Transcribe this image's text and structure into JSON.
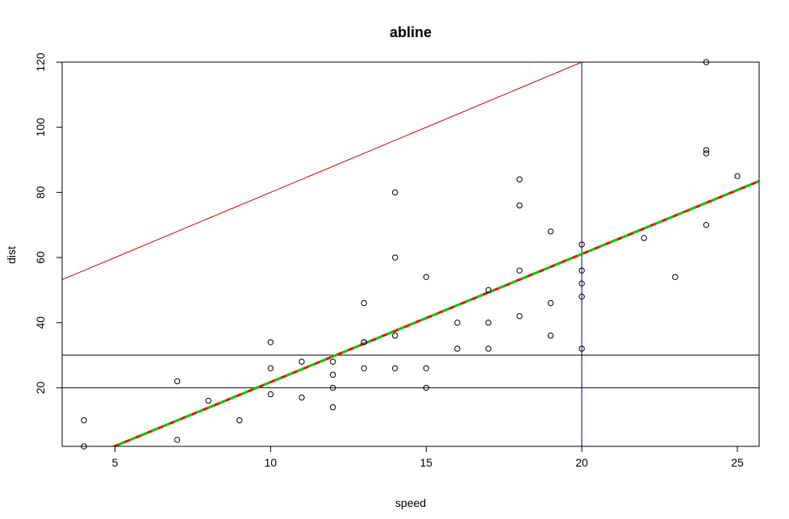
{
  "chart_data": {
    "type": "scatter",
    "title": "abline",
    "xlabel": "speed",
    "ylabel": "dist",
    "xlim": [
      3.3,
      25.7
    ],
    "ylim": [
      2,
      120
    ],
    "xticks": [
      "5",
      "10",
      "15",
      "20",
      "25"
    ],
    "yticks": [
      "20",
      "40",
      "60",
      "80",
      "100",
      "120"
    ],
    "grid": false,
    "points": [
      [
        4,
        2
      ],
      [
        4,
        10
      ],
      [
        7,
        4
      ],
      [
        7,
        22
      ],
      [
        8,
        16
      ],
      [
        9,
        10
      ],
      [
        10,
        18
      ],
      [
        10,
        26
      ],
      [
        10,
        34
      ],
      [
        11,
        17
      ],
      [
        11,
        28
      ],
      [
        12,
        14
      ],
      [
        12,
        20
      ],
      [
        12,
        24
      ],
      [
        12,
        28
      ],
      [
        13,
        26
      ],
      [
        13,
        34
      ],
      [
        13,
        34
      ],
      [
        13,
        46
      ],
      [
        14,
        26
      ],
      [
        14,
        36
      ],
      [
        14,
        60
      ],
      [
        14,
        80
      ],
      [
        15,
        20
      ],
      [
        15,
        26
      ],
      [
        15,
        54
      ],
      [
        16,
        32
      ],
      [
        16,
        40
      ],
      [
        17,
        32
      ],
      [
        17,
        40
      ],
      [
        17,
        50
      ],
      [
        18,
        42
      ],
      [
        18,
        56
      ],
      [
        18,
        76
      ],
      [
        18,
        84
      ],
      [
        19,
        36
      ],
      [
        19,
        46
      ],
      [
        19,
        68
      ],
      [
        20,
        32
      ],
      [
        20,
        48
      ],
      [
        20,
        52
      ],
      [
        20,
        56
      ],
      [
        20,
        64
      ],
      [
        22,
        66
      ],
      [
        23,
        54
      ],
      [
        24,
        70
      ],
      [
        24,
        92
      ],
      [
        24,
        93
      ],
      [
        24,
        120
      ],
      [
        25,
        85
      ]
    ],
    "lines": [
      {
        "kind": "abline",
        "intercept": 40,
        "slope": 4,
        "color": "#cc0000",
        "dash": "solid",
        "width": 1
      },
      {
        "kind": "h",
        "y": 20,
        "color": "#000000",
        "dash": "solid",
        "width": 1
      },
      {
        "kind": "h",
        "y": 30,
        "color": "#000000",
        "dash": "solid",
        "width": 1
      },
      {
        "kind": "v",
        "x": 20,
        "color": "#00008b",
        "dash": "solid",
        "width": 1
      },
      {
        "kind": "abline",
        "intercept": -17.579,
        "slope": 3.932,
        "color": "#ff0000",
        "dash": "solid",
        "width": 3
      },
      {
        "kind": "abline",
        "intercept": -17.579,
        "slope": 3.932,
        "color": "#00cc00",
        "dash": "dashed",
        "width": 3
      }
    ]
  }
}
